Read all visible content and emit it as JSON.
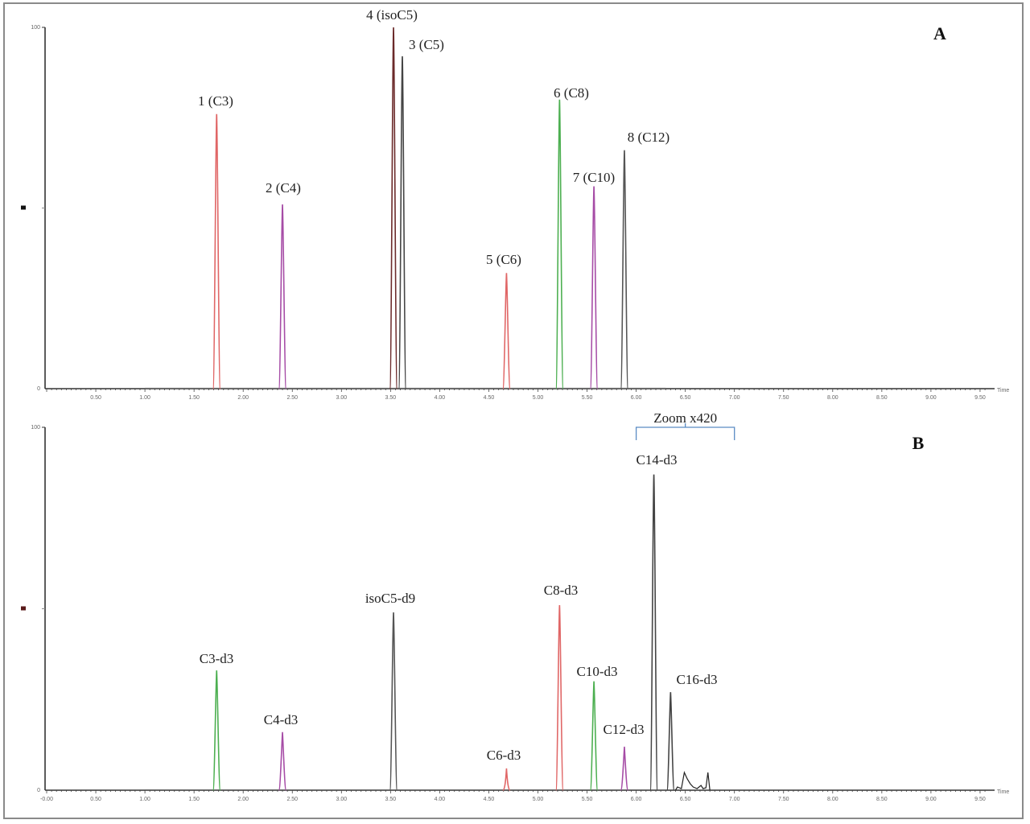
{
  "chart_data": [
    {
      "type": "line",
      "panel": "A",
      "title": "A",
      "xlabel": "Time",
      "ylabel": "",
      "xlim": [
        0.0,
        9.6
      ],
      "ylim": [
        0,
        100
      ],
      "x_ticks": [
        "0.50",
        "1.00",
        "1.50",
        "2.00",
        "2.50",
        "3.00",
        "3.50",
        "4.00",
        "4.50",
        "5.00",
        "5.50",
        "6.00",
        "6.50",
        "7.00",
        "7.50",
        "8.00",
        "8.50",
        "9.00",
        "9.50"
      ],
      "y_ticks": [
        "0",
        "100"
      ],
      "grid": false,
      "series": [
        {
          "name": "1 (C3)",
          "rt": 1.73,
          "height": 76,
          "color": "#e06666"
        },
        {
          "name": "2 (C4)",
          "rt": 2.4,
          "height": 51,
          "color": "#a64ca6"
        },
        {
          "name": "4 (isoC5)",
          "rt": 3.53,
          "height": 100,
          "color": "#6b2a2a"
        },
        {
          "name": "3 (C5)",
          "rt": 3.62,
          "height": 92,
          "color": "#444444"
        },
        {
          "name": "5 (C6)",
          "rt": 4.68,
          "height": 32,
          "color": "#e06666"
        },
        {
          "name": "6 (C8)",
          "rt": 5.22,
          "height": 80,
          "color": "#4caf50"
        },
        {
          "name": "7 (C10)",
          "rt": 5.57,
          "height": 56,
          "color": "#a64ca6"
        },
        {
          "name": "8 (C12)",
          "rt": 5.88,
          "height": 66,
          "color": "#555555"
        }
      ]
    },
    {
      "type": "line",
      "panel": "B",
      "title": "B",
      "xlabel": "Time",
      "ylabel": "",
      "xlim": [
        0.0,
        9.6
      ],
      "ylim": [
        0,
        100
      ],
      "x_ticks": [
        "-0.00",
        "0.50",
        "1.00",
        "1.50",
        "2.00",
        "2.50",
        "3.00",
        "3.50",
        "4.00",
        "4.50",
        "5.00",
        "5.50",
        "6.00",
        "6.50",
        "7.00",
        "7.50",
        "8.00",
        "8.50",
        "9.00",
        "9.50"
      ],
      "y_ticks": [
        "0",
        "100"
      ],
      "grid": false,
      "annotations": [
        {
          "text": "Zoom x420",
          "x_from": 6.0,
          "x_to": 7.0
        }
      ],
      "series": [
        {
          "name": "C3-d3",
          "rt": 1.73,
          "height": 33,
          "color": "#4caf50"
        },
        {
          "name": "C4-d3",
          "rt": 2.4,
          "height": 16,
          "color": "#a64ca6"
        },
        {
          "name": "isoC5-d9",
          "rt": 3.53,
          "height": 49,
          "color": "#555555"
        },
        {
          "name": "C6-d3",
          "rt": 4.68,
          "height": 6,
          "color": "#e06666"
        },
        {
          "name": "C8-d3",
          "rt": 5.22,
          "height": 51,
          "color": "#e06666"
        },
        {
          "name": "C10-d3",
          "rt": 5.57,
          "height": 30,
          "color": "#4caf50"
        },
        {
          "name": "C12-d3",
          "rt": 5.88,
          "height": 12,
          "color": "#a64ca6"
        },
        {
          "name": "C14-d3",
          "rt": 6.18,
          "height": 87,
          "color": "#444444"
        },
        {
          "name": "C16-d3",
          "rt": 6.35,
          "height": 27,
          "color": "#444444"
        }
      ]
    }
  ],
  "labels": {
    "panel_a": "A",
    "panel_b": "B",
    "time_axis": "Time",
    "y_max": "100",
    "y_min": "0",
    "zoom_note": "Zoom x420"
  }
}
